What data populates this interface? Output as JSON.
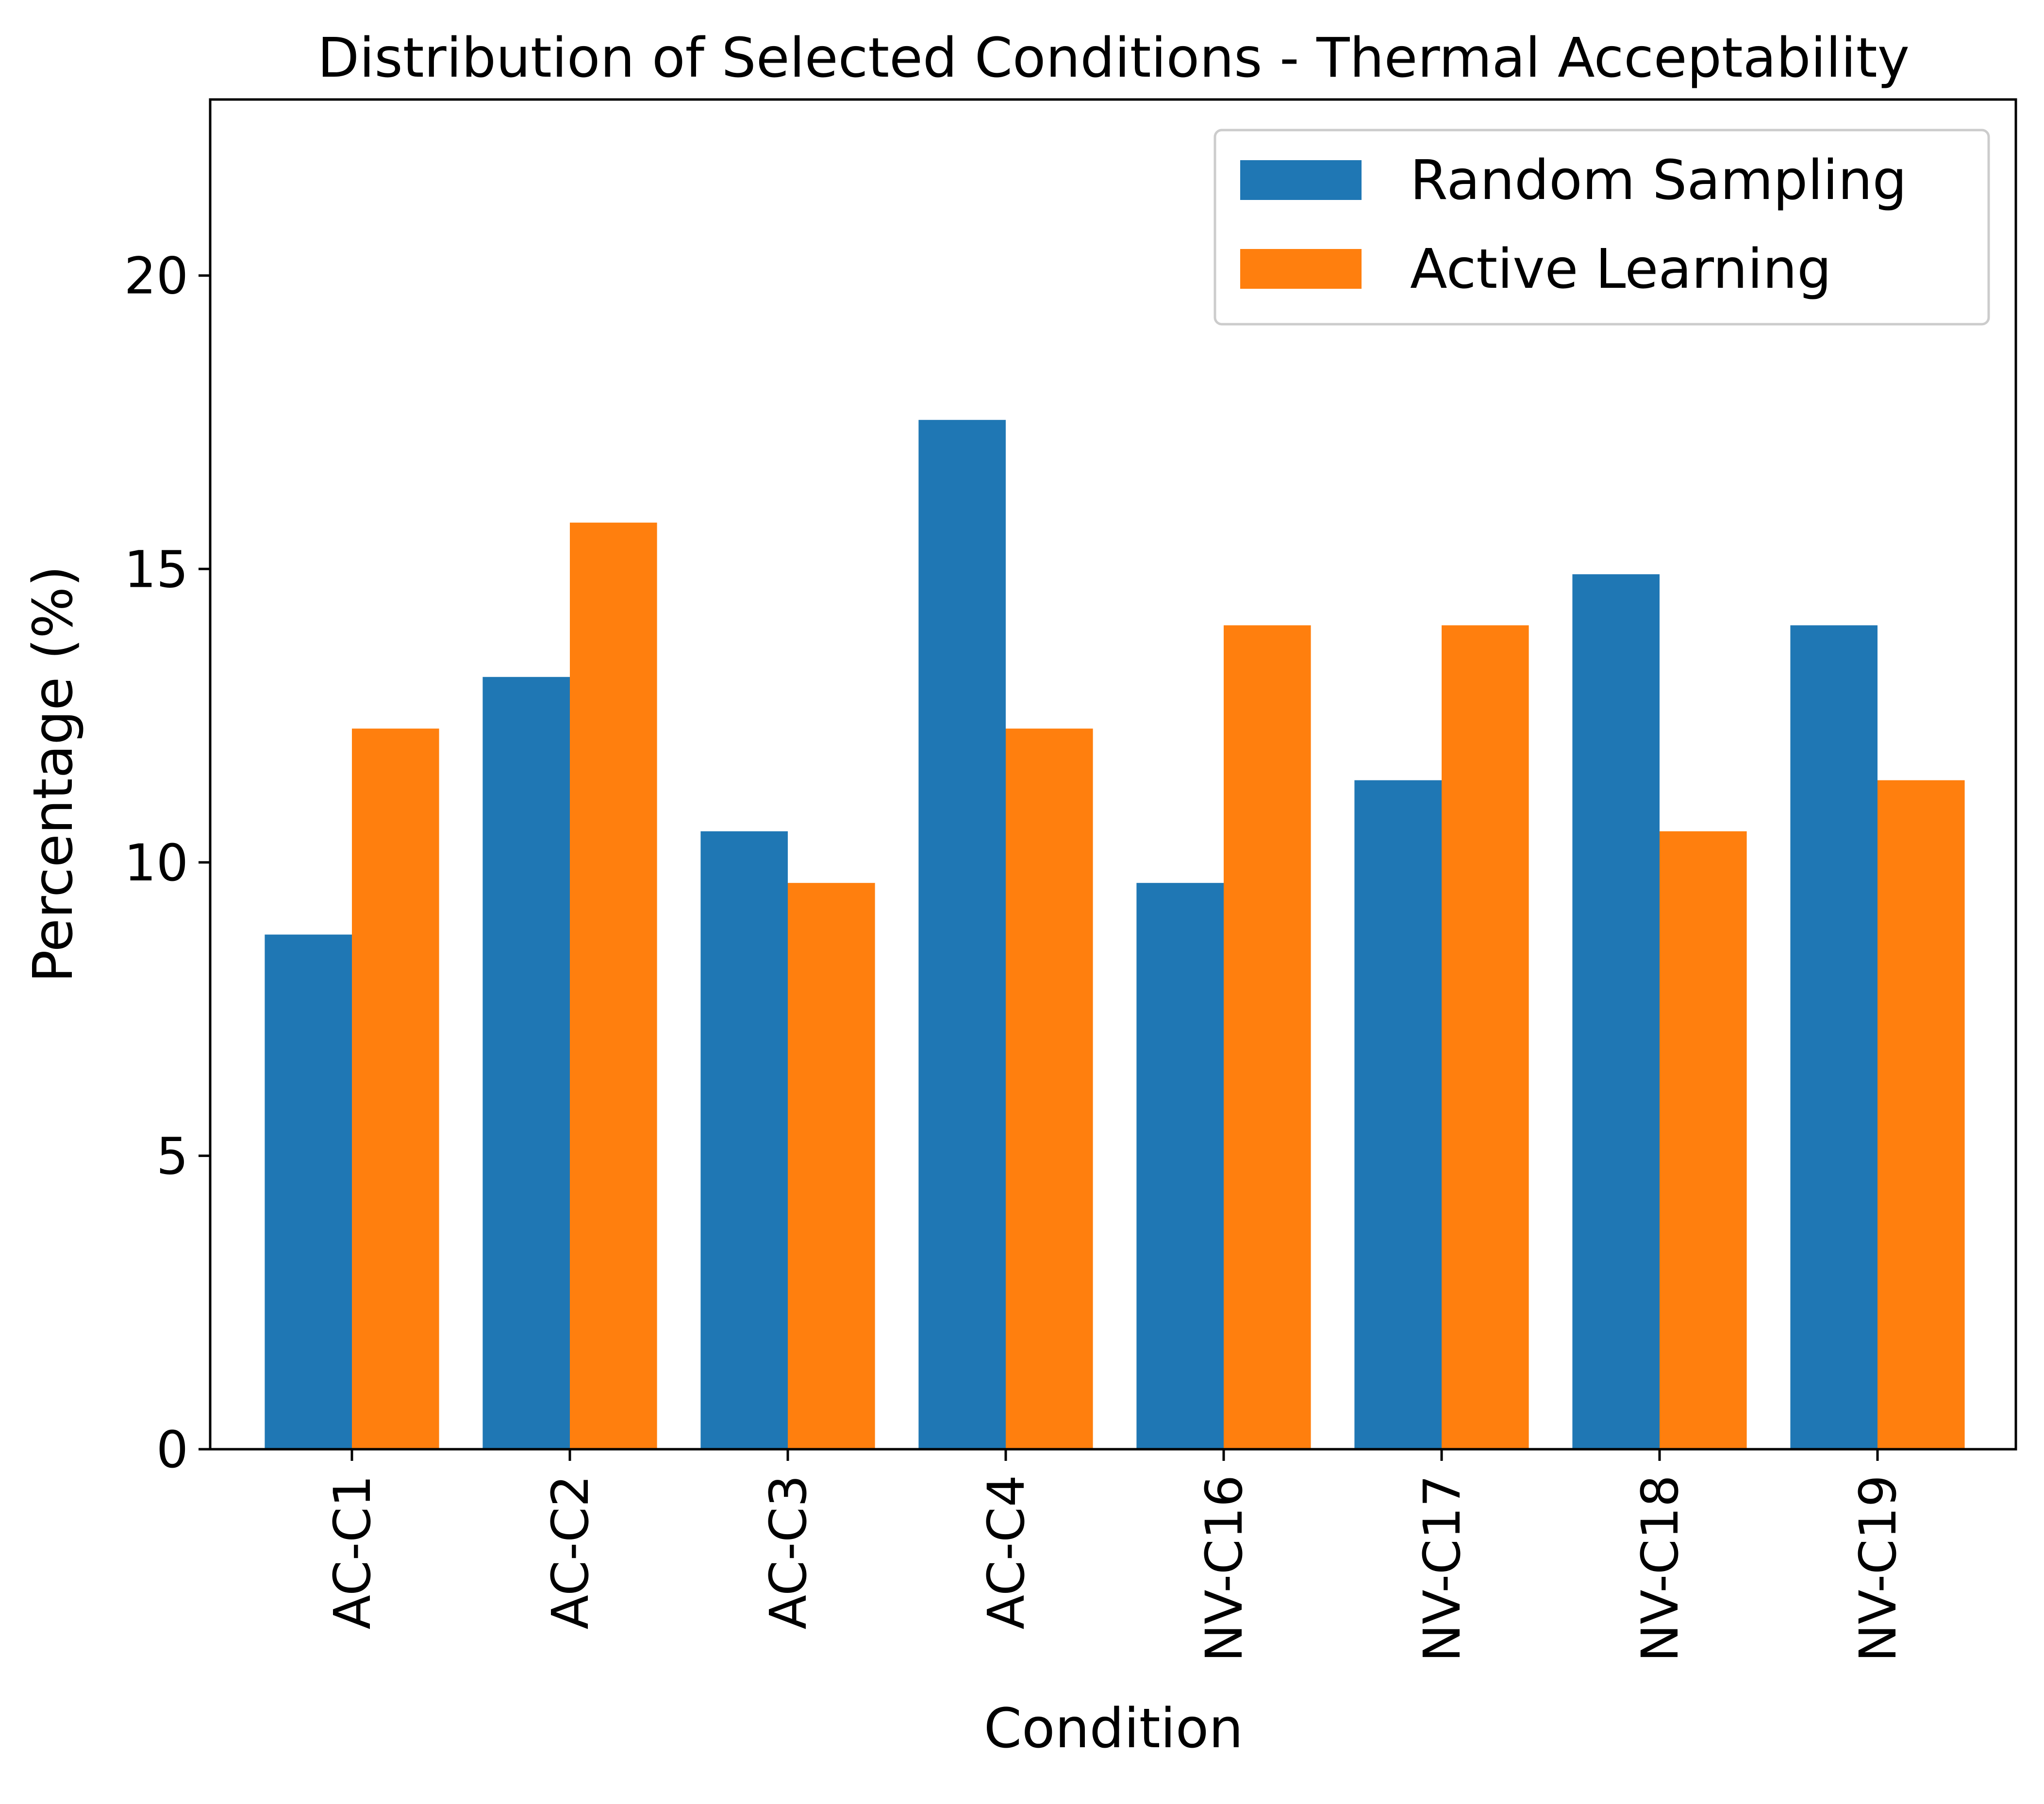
{
  "chart_data": {
    "type": "bar",
    "title": "Distribution of Selected Conditions - Thermal Acceptability",
    "xlabel": "Condition",
    "ylabel": "Percentage (%)",
    "ylim": [
      0,
      23
    ],
    "yticks": [
      0,
      5,
      10,
      15,
      20
    ],
    "grid": false,
    "legend_position": "top-right",
    "categories": [
      "AC-C1",
      "AC-C2",
      "AC-C3",
      "AC-C4",
      "NV-C16",
      "NV-C17",
      "NV-C18",
      "NV-C19"
    ],
    "series": [
      {
        "name": "Random Sampling",
        "color": "#1f77b4",
        "values": [
          8.77,
          13.16,
          10.53,
          17.54,
          9.65,
          11.4,
          14.91,
          14.04
        ]
      },
      {
        "name": "Active Learning",
        "color": "#ff7f0e",
        "values": [
          12.28,
          15.79,
          9.65,
          12.28,
          14.04,
          14.04,
          10.53,
          11.4
        ]
      }
    ]
  }
}
